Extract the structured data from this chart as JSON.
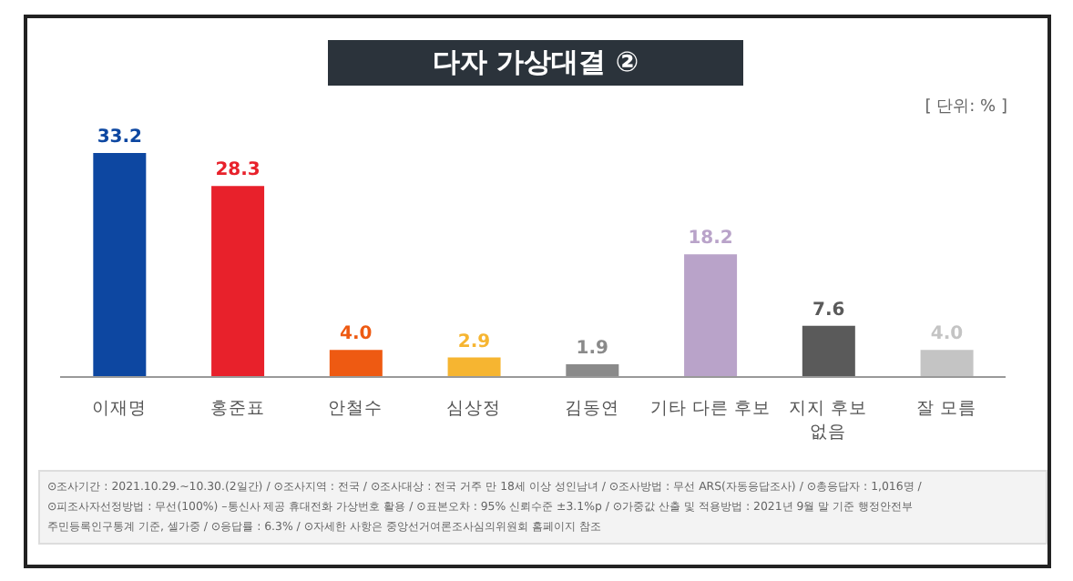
{
  "chart_data": {
    "type": "bar",
    "title": "다자 가상대결 ②",
    "subtitle": "[ 단위: % ]",
    "categories": [
      "이재명",
      "홍준표",
      "안철수",
      "심상정",
      "김동연",
      "기타 다른 후보",
      "지지 후보\n없음",
      "잘 모름"
    ],
    "values": [
      33.2,
      28.3,
      4.0,
      2.9,
      1.9,
      18.2,
      7.6,
      4.0
    ],
    "value_labels": [
      "33.2",
      "28.3",
      "4.0",
      "2.9",
      "1.9",
      "18.2",
      "7.6",
      "4.0"
    ],
    "colors": [
      "#0d47a1",
      "#e8212b",
      "#ee5a12",
      "#f6b531",
      "#8a8a8a",
      "#b9a3c9",
      "#5a5a5a",
      "#c4c4c4"
    ],
    "annotations": [
      "⊙조사기간 : 2021.10.29.~10.30.(2일간) / ⊙조사지역 : 전국 / ⊙조사대상 : 전국 거주 만 18세 이상 성인남녀 / ⊙조사방법 : 무선 ARS(자동응답조사) / ⊙총응답자 : 1,016명 /",
      "⊙피조사자선정방법 : 무선(100%) –통신사 제공 휴대전화 가상번호 활용 / ⊙표본오차 : 95% 신뢰수준 ±3.1%p / ⊙가중값 산출 및 적용방법 : 2021년 9월 말 기준 행정안전부",
      "주민등록인구통계 기준, 셀가중 / ⊙응답률 : 6.3% / ⊙자세한 사항은 중앙선거여론조사심의위원회 홈페이지 참조"
    ],
    "grid": false,
    "legend": false
  }
}
